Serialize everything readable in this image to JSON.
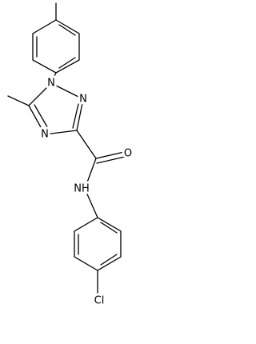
{
  "atoms": [
    {
      "label": "N"
    },
    {
      "label": "N"
    },
    {
      "label": "N"
    },
    {
      "label": "O"
    },
    {
      "label": "NH"
    },
    {
      "label": "Cl"
    }
  ]
}
